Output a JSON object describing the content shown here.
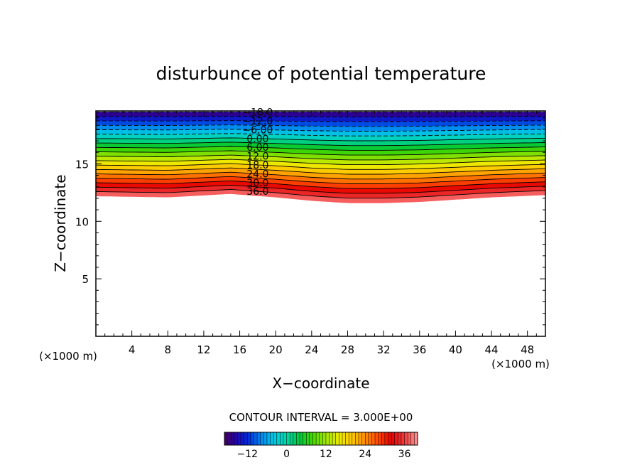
{
  "chart_data": {
    "type": "contour",
    "title": "disturbunce of potential temperature",
    "xlabel": "X−coordinate",
    "ylabel": "Z−coordinate",
    "x_unit_label": "(×1000 m)",
    "y_unit_label": "(×1000 m)",
    "xlim": [
      0,
      50
    ],
    "ylim": [
      0,
      19.6
    ],
    "x_ticks": [
      4,
      8,
      12,
      16,
      20,
      24,
      28,
      32,
      36,
      40,
      44,
      48
    ],
    "x_tick_labels": [
      "4",
      "8",
      "12",
      "16",
      "20",
      "24",
      "28",
      "32",
      "36",
      "40",
      "44",
      "48"
    ],
    "y_ticks": [
      5,
      10,
      15
    ],
    "y_tick_labels": [
      "5",
      "10",
      "15"
    ],
    "contour_interval_text": "CONTOUR INTERVAL = 3.000E+00",
    "contour_interval": 3,
    "level_range": [
      -18,
      39
    ],
    "filled_region": {
      "bottom_boundary_x": [
        0,
        8,
        15,
        20,
        24,
        28,
        32,
        36,
        40,
        44,
        50
      ],
      "bottom_boundary_z": [
        12.2,
        12.1,
        12.4,
        12.1,
        11.8,
        11.6,
        11.6,
        11.7,
        11.9,
        12.1,
        12.3
      ],
      "top_z": 19.5,
      "value_at_bottom": 39,
      "value_at_top": -18
    },
    "contour_labels": [
      "−18.0",
      "−12.0",
      "−6.00",
      "0.00",
      "6.00",
      "12.0",
      "18.0",
      "24.0",
      "30.0",
      "36.0"
    ],
    "contour_label_values": [
      -18,
      -12,
      -6,
      0,
      6,
      12,
      18,
      24,
      30,
      36
    ],
    "colorbar": {
      "ticks": [
        -12,
        0,
        12,
        24,
        36
      ],
      "tick_labels": [
        "−12",
        "0",
        "12",
        "24",
        "36"
      ],
      "range": [
        -19,
        40
      ]
    }
  }
}
